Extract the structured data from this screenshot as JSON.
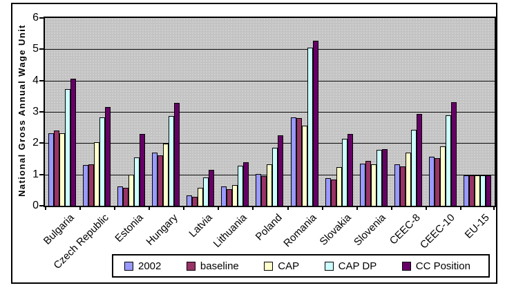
{
  "chart_data": {
    "type": "bar",
    "title": "",
    "ylabel": "National Gross Annual Wage Unit",
    "xlabel": "",
    "ylim": [
      0,
      6
    ],
    "yticks": [
      0,
      1,
      2,
      3,
      4,
      5,
      6
    ],
    "grid": true,
    "grid_values": [
      1,
      2,
      3,
      4,
      5
    ],
    "legend_position": "bottom",
    "plot_background": "#C3C3C3",
    "bar_border_color": "#000000",
    "categories": [
      "Bulgaria",
      "Czech Republic",
      "Estonia",
      "Hungary",
      "Latvia",
      "Lithuania",
      "Poland",
      "Romania",
      "Slovakia",
      "Slovenia",
      "CEEC-8",
      "CEEC-10",
      "EU-15"
    ],
    "series": [
      {
        "name": "2002",
        "color": "#9999FF",
        "values": [
          2.32,
          1.3,
          0.62,
          1.7,
          0.33,
          0.62,
          1.01,
          2.83,
          0.88,
          1.35,
          1.32,
          1.57,
          0.97
        ]
      },
      {
        "name": "baseline",
        "color": "#993366",
        "values": [
          2.4,
          1.32,
          0.57,
          1.6,
          0.29,
          0.52,
          0.95,
          2.8,
          0.83,
          1.43,
          1.25,
          1.53,
          0.97
        ]
      },
      {
        "name": "CAP",
        "color": "#FFFFCC",
        "values": [
          2.32,
          2.03,
          1.0,
          1.98,
          0.57,
          0.67,
          1.33,
          2.55,
          1.23,
          1.32,
          1.7,
          1.9,
          0.97
        ]
      },
      {
        "name": "CAP DP",
        "color": "#CCFFFF",
        "values": [
          3.72,
          2.83,
          1.55,
          2.86,
          0.9,
          1.29,
          1.85,
          5.05,
          2.15,
          1.78,
          2.43,
          2.9,
          0.97
        ]
      },
      {
        "name": "CC Position",
        "color": "#660066",
        "values": [
          4.05,
          3.15,
          2.3,
          3.28,
          1.15,
          1.38,
          2.25,
          5.27,
          2.29,
          1.8,
          2.93,
          3.3,
          0.97
        ]
      }
    ]
  }
}
